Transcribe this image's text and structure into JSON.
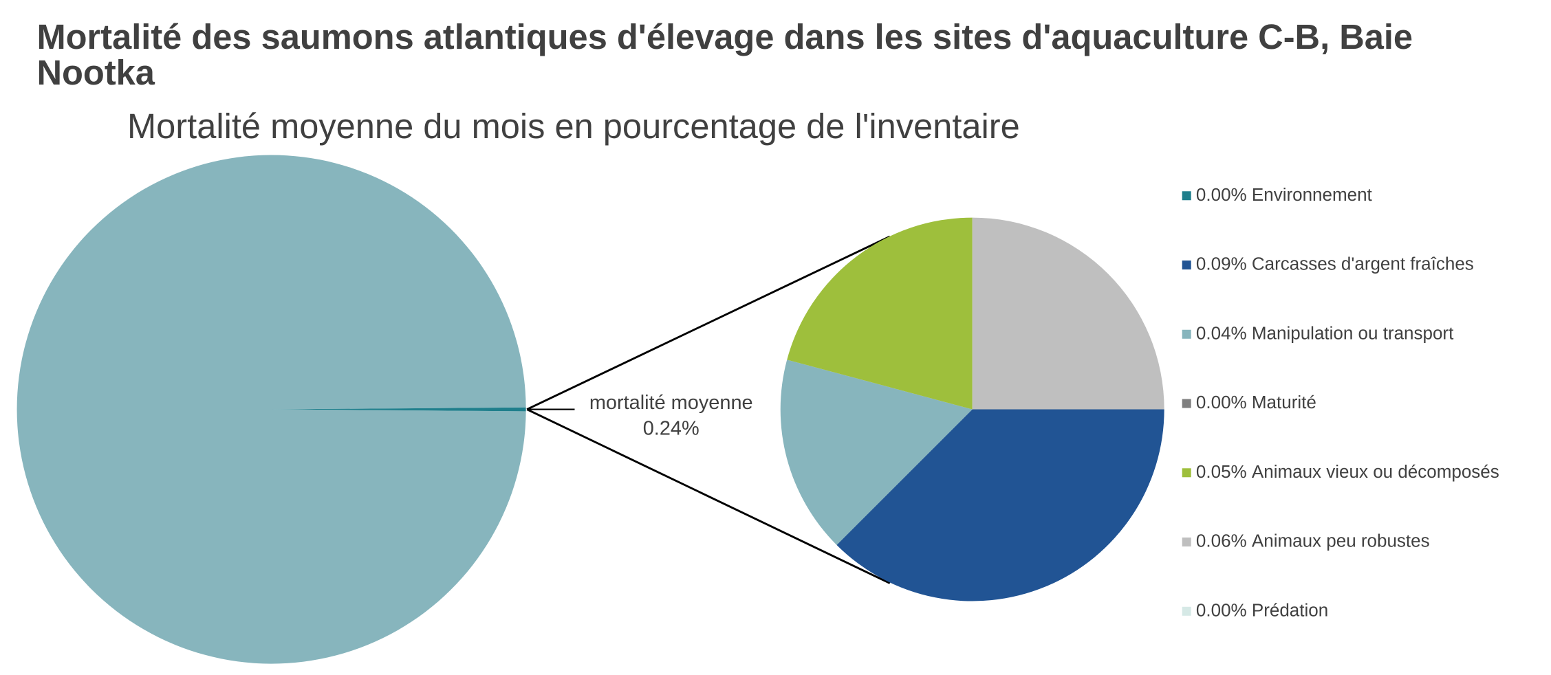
{
  "chart_data": {
    "type": "pie-of-pie",
    "title": "Mortalité des saumons atlantiques d'élevage dans les sites d'aquaculture C-B, Baie Nootka",
    "subtitle": "Mortalité moyenne du mois en pourcentage de l'inventaire",
    "main": {
      "categories": [
        null,
        "mortalité moyenne"
      ],
      "values": [
        99.76,
        0.24
      ],
      "value_labels": [
        null,
        "0.24%"
      ],
      "colors": [
        "#87b5bd",
        "#1f7f8c"
      ]
    },
    "detail": {
      "categories": [
        "Environnement",
        "Carcasses d'argent fraîches",
        "Manipulation ou transport",
        "Maturité",
        "Animaux vieux ou décomposés",
        "Animaux peu robustes",
        "Prédation"
      ],
      "values": [
        0.0,
        0.09,
        0.04,
        0.0,
        0.05,
        0.06,
        0.0
      ],
      "value_labels": [
        "0.00%",
        "0.09%",
        "0.04%",
        "0.00%",
        "0.05%",
        "0.06%",
        "0.00%"
      ],
      "colors": [
        "#1f7f8c",
        "#215494",
        "#87b5bd",
        "#7f7f7f",
        "#9ebf3c",
        "#bfbfbf",
        "#d6e9e6"
      ]
    }
  }
}
